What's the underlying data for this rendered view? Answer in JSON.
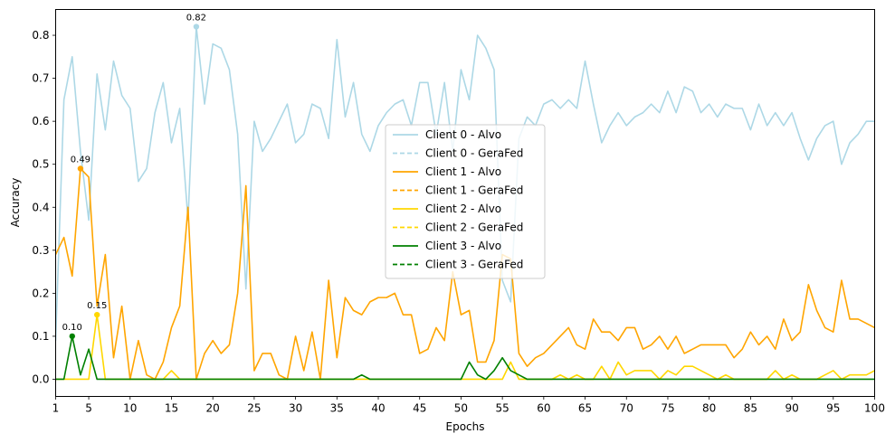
{
  "chart_data": {
    "type": "line",
    "xlabel": "Epochs",
    "ylabel": "Accuracy",
    "xlim": [
      1,
      100
    ],
    "ylim": [
      -0.04,
      0.86
    ],
    "xticks": [
      1,
      5,
      10,
      15,
      20,
      25,
      30,
      35,
      40,
      45,
      50,
      55,
      60,
      65,
      70,
      75,
      80,
      85,
      90,
      95,
      100
    ],
    "yticks": [
      0.0,
      0.1,
      0.2,
      0.3,
      0.4,
      0.5,
      0.6,
      0.7,
      0.8
    ],
    "ytick_labels": [
      "0.0",
      "0.1",
      "0.2",
      "0.3",
      "0.4",
      "0.5",
      "0.6",
      "0.7",
      "0.8"
    ],
    "grid": false,
    "legend_position": "center",
    "series": [
      {
        "name": "Client 0 - Alvo",
        "color": "#add8e6",
        "style": "solid",
        "values": [
          0.09,
          0.65,
          0.75,
          0.53,
          0.37,
          0.71,
          0.58,
          0.74,
          0.66,
          0.63,
          0.46,
          0.49,
          0.62,
          0.69,
          0.55,
          0.63,
          0.37,
          0.82,
          0.64,
          0.78,
          0.77,
          0.72,
          0.57,
          0.21,
          0.6,
          0.53,
          0.56,
          0.6,
          0.64,
          0.55,
          0.57,
          0.64,
          0.63,
          0.56,
          0.79,
          0.61,
          0.69,
          0.57,
          0.53,
          0.59,
          0.62,
          0.64,
          0.65,
          0.59,
          0.69,
          0.69,
          0.57,
          0.69,
          0.53,
          0.72,
          0.65,
          0.8,
          0.77,
          0.72,
          0.23,
          0.18,
          0.56,
          0.61,
          0.59,
          0.64,
          0.65,
          0.63,
          0.65,
          0.63,
          0.74,
          0.64,
          0.55,
          0.59,
          0.62,
          0.59,
          0.61,
          0.62,
          0.64,
          0.62,
          0.67,
          0.62,
          0.68,
          0.67,
          0.62,
          0.64,
          0.61,
          0.64,
          0.63,
          0.63,
          0.58,
          0.64,
          0.59,
          0.62,
          0.59,
          0.62,
          0.56,
          0.51,
          0.56,
          0.59,
          0.6,
          0.5,
          0.55,
          0.57,
          0.6,
          0.6
        ]
      },
      {
        "name": "Client 0 - GeraFed",
        "color": "#add8e6",
        "style": "dashed",
        "values": []
      },
      {
        "name": "Client 1 - Alvo",
        "color": "#ffa500",
        "style": "solid",
        "values": [
          0.29,
          0.33,
          0.24,
          0.49,
          0.47,
          0.17,
          0.29,
          0.05,
          0.17,
          0.0,
          0.09,
          0.01,
          0.0,
          0.04,
          0.12,
          0.17,
          0.4,
          0.0,
          0.06,
          0.09,
          0.06,
          0.08,
          0.2,
          0.45,
          0.02,
          0.06,
          0.06,
          0.01,
          0.0,
          0.1,
          0.02,
          0.11,
          0.0,
          0.23,
          0.05,
          0.19,
          0.16,
          0.15,
          0.18,
          0.19,
          0.19,
          0.2,
          0.15,
          0.15,
          0.06,
          0.07,
          0.12,
          0.09,
          0.25,
          0.15,
          0.16,
          0.04,
          0.04,
          0.09,
          0.29,
          0.28,
          0.06,
          0.03,
          0.05,
          0.06,
          0.08,
          0.1,
          0.12,
          0.08,
          0.07,
          0.14,
          0.11,
          0.11,
          0.09,
          0.12,
          0.12,
          0.07,
          0.08,
          0.1,
          0.07,
          0.1,
          0.06,
          0.07,
          0.08,
          0.08,
          0.08,
          0.08,
          0.05,
          0.07,
          0.11,
          0.08,
          0.1,
          0.07,
          0.14,
          0.09,
          0.11,
          0.22,
          0.16,
          0.12,
          0.11,
          0.23,
          0.14,
          0.14,
          0.13,
          0.12
        ]
      },
      {
        "name": "Client 1 - GeraFed",
        "color": "#ffa500",
        "style": "dashed",
        "values": []
      },
      {
        "name": "Client 2 - Alvo",
        "color": "#ffd700",
        "style": "solid",
        "values": [
          0.0,
          0.0,
          0.0,
          0.0,
          0.0,
          0.15,
          0.0,
          0.0,
          0.0,
          0.0,
          0.0,
          0.0,
          0.0,
          0.0,
          0.02,
          0.0,
          0.0,
          0.0,
          0.0,
          0.0,
          0.0,
          0.0,
          0.0,
          0.0,
          0.0,
          0.0,
          0.0,
          0.0,
          0.0,
          0.0,
          0.0,
          0.0,
          0.0,
          0.0,
          0.0,
          0.0,
          0.0,
          0.0,
          0.0,
          0.0,
          0.0,
          0.0,
          0.0,
          0.0,
          0.0,
          0.0,
          0.0,
          0.0,
          0.0,
          0.0,
          0.0,
          0.0,
          0.0,
          0.0,
          0.0,
          0.04,
          0.0,
          0.0,
          0.0,
          0.0,
          0.0,
          0.01,
          0.0,
          0.01,
          0.0,
          0.0,
          0.03,
          0.0,
          0.04,
          0.01,
          0.02,
          0.02,
          0.02,
          0.0,
          0.02,
          0.01,
          0.03,
          0.03,
          0.02,
          0.01,
          0.0,
          0.01,
          0.0,
          0.0,
          0.0,
          0.0,
          0.0,
          0.02,
          0.0,
          0.01,
          0.0,
          0.0,
          0.0,
          0.01,
          0.02,
          0.0,
          0.01,
          0.01,
          0.01,
          0.02
        ]
      },
      {
        "name": "Client 2 - GeraFed",
        "color": "#ffd700",
        "style": "dashed",
        "values": []
      },
      {
        "name": "Client 3 - Alvo",
        "color": "#008000",
        "style": "solid",
        "values": [
          0.0,
          0.0,
          0.1,
          0.01,
          0.07,
          0.0,
          0.0,
          0.0,
          0.0,
          0.0,
          0.0,
          0.0,
          0.0,
          0.0,
          0.0,
          0.0,
          0.0,
          0.0,
          0.0,
          0.0,
          0.0,
          0.0,
          0.0,
          0.0,
          0.0,
          0.0,
          0.0,
          0.0,
          0.0,
          0.0,
          0.0,
          0.0,
          0.0,
          0.0,
          0.0,
          0.0,
          0.0,
          0.01,
          0.0,
          0.0,
          0.0,
          0.0,
          0.0,
          0.0,
          0.0,
          0.0,
          0.0,
          0.0,
          0.0,
          0.0,
          0.04,
          0.01,
          0.0,
          0.02,
          0.05,
          0.02,
          0.01,
          0.0,
          0.0,
          0.0,
          0.0,
          0.0,
          0.0,
          0.0,
          0.0,
          0.0,
          0.0,
          0.0,
          0.0,
          0.0,
          0.0,
          0.0,
          0.0,
          0.0,
          0.0,
          0.0,
          0.0,
          0.0,
          0.0,
          0.0,
          0.0,
          0.0,
          0.0,
          0.0,
          0.0,
          0.0,
          0.0,
          0.0,
          0.0,
          0.0,
          0.0,
          0.0,
          0.0,
          0.0,
          0.0,
          0.0,
          0.0,
          0.0,
          0.0,
          0.0
        ]
      },
      {
        "name": "Client 3 - GeraFed",
        "color": "#008000",
        "style": "dashed",
        "values": []
      }
    ],
    "annotations": [
      {
        "x": 18,
        "y": 0.82,
        "text": "0.82",
        "color": "#add8e6"
      },
      {
        "x": 4,
        "y": 0.49,
        "text": "0.49",
        "color": "#ffa500"
      },
      {
        "x": 6,
        "y": 0.15,
        "text": "0.15",
        "color": "#ffd700"
      },
      {
        "x": 3,
        "y": 0.1,
        "text": "0.10",
        "color": "#008000"
      }
    ]
  }
}
